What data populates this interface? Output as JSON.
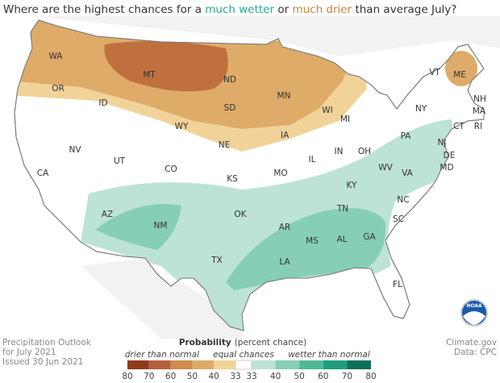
{
  "title": {
    "lead": "Where are the highest chances for a ",
    "wetter": "much wetter",
    "middle": " or ",
    "drier": "much drier",
    "tail": " than average July?"
  },
  "states": [
    "WA",
    "OR",
    "ID",
    "MT",
    "ND",
    "SD",
    "MN",
    "WI",
    "WY",
    "NE",
    "IA",
    "MI",
    "NV",
    "UT",
    "CO",
    "KS",
    "MO",
    "IL",
    "IN",
    "OH",
    "PA",
    "NY",
    "VT",
    "ME",
    "NH",
    "MA",
    "RI",
    "CT",
    "NJ",
    "DE",
    "MD",
    "WV",
    "VA",
    "KY",
    "TN",
    "NC",
    "SC",
    "GA",
    "AL",
    "MS",
    "LA",
    "AR",
    "OK",
    "TX",
    "NM",
    "AZ",
    "CA",
    "FL"
  ],
  "footer": {
    "product": "Precipitation Outlook",
    "period": "for July 2021",
    "issued": "Issued 30 Jun 2021",
    "source": "Climate.gov",
    "data": "Data: CPC"
  },
  "logo": "NOAA",
  "legend": {
    "title": "Probability",
    "subtitle": "(percent chance)",
    "drier_label": "drier than normal",
    "equal_label": "equal chances",
    "wetter_label": "wetter than normal",
    "drier": {
      "ticks": [
        80,
        70,
        60,
        50,
        40,
        33
      ],
      "colors": [
        "#8e3b1c",
        "#b5603a",
        "#cf8a4c",
        "#dfab68",
        "#f1d39a"
      ]
    },
    "equal_color": "#ffffff",
    "wetter": {
      "ticks": [
        33,
        40,
        50,
        60,
        70,
        80
      ],
      "colors": [
        "#bde3d4",
        "#86cfb5",
        "#4fb995",
        "#1e9c7c",
        "#0e6f58"
      ]
    }
  }
}
